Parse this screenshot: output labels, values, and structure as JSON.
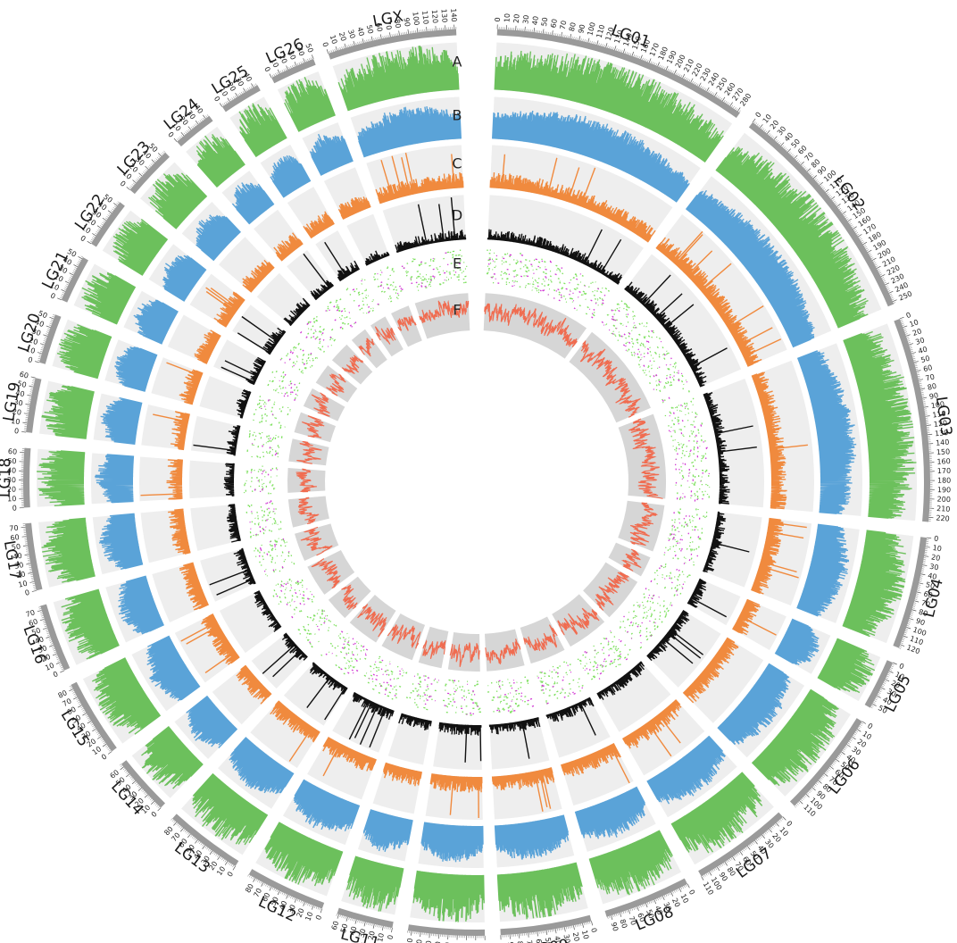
{
  "chart_data": {
    "type": "circos",
    "track_letters": [
      "A",
      "B",
      "C",
      "D",
      "E",
      "F"
    ],
    "colors": {
      "A": "#6cc05c",
      "B": "#5aa3d8",
      "C": "#f08a3e",
      "D": "#111111",
      "E_green": "#7ee05f",
      "E_magenta": "#d13bd4",
      "F": "#f06c50",
      "track_bg": "#eeeeee",
      "track_F_bg": "#d6d6d6",
      "ideogram": "#9a9a9a"
    },
    "chromosomes": [
      {
        "name": "LG01",
        "size": 283
      },
      {
        "name": "LG02",
        "size": 253
      },
      {
        "name": "LG03",
        "size": 225
      },
      {
        "name": "LG04",
        "size": 124
      },
      {
        "name": "LG05",
        "size": 55
      },
      {
        "name": "LG06",
        "size": 118
      },
      {
        "name": "LG07",
        "size": 110
      },
      {
        "name": "LG08",
        "size": 95
      },
      {
        "name": "LG09",
        "size": 100
      },
      {
        "name": "LG10",
        "size": 84
      },
      {
        "name": "LG11",
        "size": 62
      },
      {
        "name": "LG12",
        "size": 88
      },
      {
        "name": "LG13",
        "size": 86
      },
      {
        "name": "LG14",
        "size": 64
      },
      {
        "name": "LG15",
        "size": 85
      },
      {
        "name": "LG16",
        "size": 75
      },
      {
        "name": "LG17",
        "size": 74
      },
      {
        "name": "LG18",
        "size": 65
      },
      {
        "name": "LG19",
        "size": 60
      },
      {
        "name": "LG20",
        "size": 55
      },
      {
        "name": "LG21",
        "size": 52
      },
      {
        "name": "LG22",
        "size": 55
      },
      {
        "name": "LG23",
        "size": 56
      },
      {
        "name": "LG24",
        "size": 45
      },
      {
        "name": "LG25",
        "size": 45
      },
      {
        "name": "LG26",
        "size": 50
      },
      {
        "name": "LGX",
        "size": 142
      }
    ],
    "tick_interval": 10,
    "units": "Mb"
  }
}
